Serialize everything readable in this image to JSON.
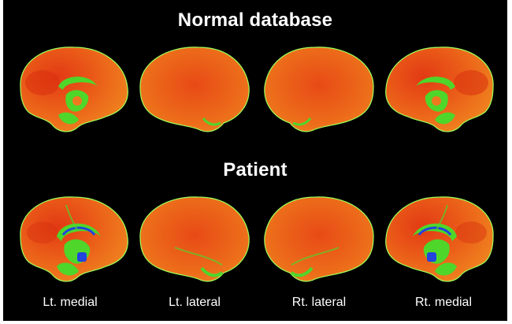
{
  "headings": {
    "normal": "Normal database",
    "patient": "Patient"
  },
  "view_labels": [
    "Lt. medial",
    "Lt. lateral",
    "Rt. lateral",
    "Rt. medial"
  ],
  "colors": {
    "background": "#000000",
    "cortex_high": "#e23a14",
    "cortex_mid": "#ee6a1a",
    "cortex_low": "#f08a20",
    "reduced_perfusion": "#4fd62a",
    "severely_reduced": "#2244dd",
    "outline": "#9cff5a"
  }
}
